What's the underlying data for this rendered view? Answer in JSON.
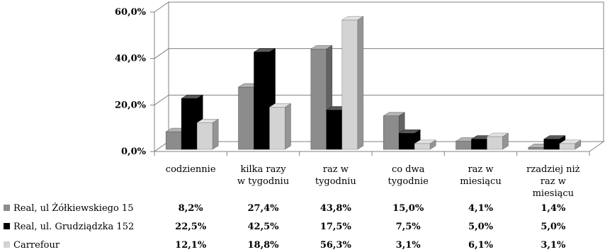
{
  "chart_data": {
    "type": "bar",
    "categories": [
      [
        "codziennie"
      ],
      [
        "kilka razy",
        "w tygodniu"
      ],
      [
        "raz w",
        "tygodniu"
      ],
      [
        "co dwa",
        "tygodnie"
      ],
      [
        "raz w",
        "miesiącu"
      ],
      [
        "rzadziej niż",
        "raz w",
        "miesiącu"
      ]
    ],
    "series": [
      {
        "name": "Real, ul Żółkiewskiego 15",
        "color": "#8c8c8c",
        "values": [
          8.2,
          27.4,
          43.8,
          15.0,
          4.1,
          1.4
        ],
        "labels": [
          "8,2%",
          "27,4%",
          "43,8%",
          "15,0%",
          "4,1%",
          "1,4%"
        ]
      },
      {
        "name": "Real, ul. Grudziądzka 152",
        "color": "#000000",
        "values": [
          22.5,
          42.5,
          17.5,
          7.5,
          5.0,
          5.0
        ],
        "labels": [
          "22,5%",
          "42,5%",
          "17,5%",
          "7,5%",
          "5,0%",
          "5,0%"
        ]
      },
      {
        "name": "Carrefour",
        "color": "#d3d3d3",
        "values": [
          12.1,
          18.8,
          56.3,
          3.1,
          6.1,
          3.1
        ],
        "labels": [
          "12,1%",
          "18,8%",
          "56,3%",
          "3,1%",
          "6,1%",
          "3,1%"
        ]
      }
    ],
    "yticks": [
      "0,0%",
      "20,0%",
      "40,0%",
      "60,0%"
    ],
    "ylim": [
      0,
      60
    ],
    "grid": true,
    "bar_style": "3d",
    "legend": "data-table"
  }
}
